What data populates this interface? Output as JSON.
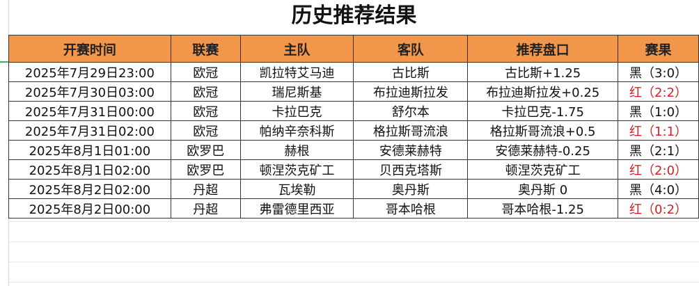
{
  "title": "历史推荐结果",
  "headers": [
    "开赛时间",
    "联赛",
    "主队",
    "客队",
    "推荐盘口",
    "赛果"
  ],
  "rows": [
    [
      "2025年7月29日23:00",
      "欧冠",
      "凯拉特艾马迪",
      "古比斯",
      "古比斯+1.25",
      "黑（3:0）",
      "black"
    ],
    [
      "2025年7月30日03:00",
      "欧冠",
      "瑞尼斯基",
      "布拉迪斯拉发",
      "布拉迪斯拉发+0.25",
      "红（2:2）",
      "red"
    ],
    [
      "2025年7月31日00:00",
      "欧冠",
      "卡拉巴克",
      "舒尔本",
      "卡拉巴克-1.75",
      "黑（1:0）",
      "black"
    ],
    [
      "2025年7月31日02:00",
      "欧冠",
      "帕纳辛奈科斯",
      "格拉斯哥流浪",
      "格拉斯哥流浪+0.5",
      "红（1:1）",
      "red"
    ],
    [
      "2025年8月1日01:00",
      "欧罗巴",
      "赫根",
      "安德莱赫特",
      "安德莱赫特-0.25",
      "黑（2:1）",
      "black"
    ],
    [
      "2025年8月1日02:00",
      "欧罗巴",
      "顿涅茨克矿工",
      "贝西克塔斯",
      "顿涅茨克矿工",
      "红（2:0）",
      "red"
    ],
    [
      "2025年8月2日02:00",
      "丹超",
      "瓦埃勒",
      "奥丹斯",
      "奥丹斯 0",
      "黑（4:0）",
      "black"
    ],
    [
      "2025年8月2日00:00",
      "丹超",
      "弗雷德里西亚",
      "哥本哈根",
      "哥本哈根-1.25",
      "红（0:2）",
      "red"
    ]
  ],
  "colors": {
    "header_bg": "#f2964a",
    "red_result": "#d42020"
  }
}
